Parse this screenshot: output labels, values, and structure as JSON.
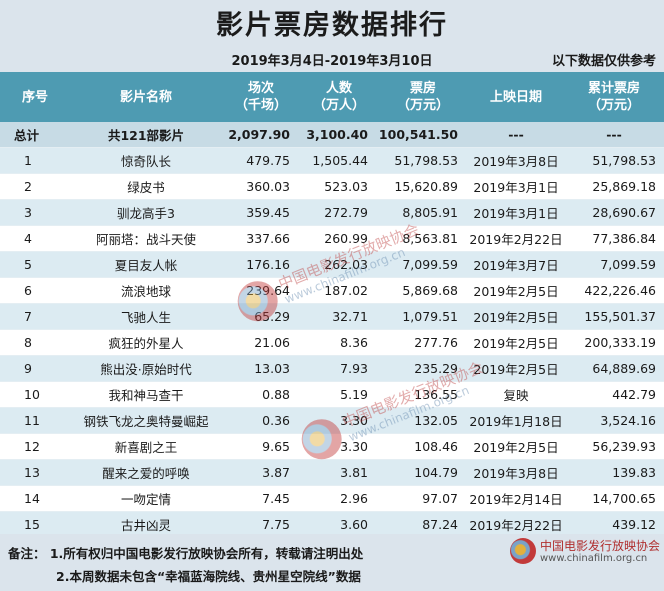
{
  "title": "影片票房数据排行",
  "date_range": "2019年3月4日-2019年3月10日",
  "note": "以下数据仅供参考",
  "headers": {
    "rank": "序号",
    "name": "影片名称",
    "screenings": "场次",
    "screenings_unit": "（千场）",
    "audience": "人数",
    "audience_unit": "（万人）",
    "box": "票房",
    "box_unit": "（万元）",
    "date": "上映日期",
    "cum": "累计票房",
    "cum_unit": "（万元）"
  },
  "total": {
    "label": "总计",
    "name": "共121部影片",
    "screenings": "2,097.90",
    "audience": "3,100.40",
    "box": "100,541.50",
    "date": "---",
    "cum": "---"
  },
  "rows": [
    {
      "rank": "1",
      "name": "惊奇队长",
      "screenings": "479.75",
      "audience": "1,505.44",
      "box": "51,798.53",
      "date": "2019年3月8日",
      "cum": "51,798.53"
    },
    {
      "rank": "2",
      "name": "绿皮书",
      "screenings": "360.03",
      "audience": "523.03",
      "box": "15,620.89",
      "date": "2019年3月1日",
      "cum": "25,869.18"
    },
    {
      "rank": "3",
      "name": "驯龙高手3",
      "screenings": "359.45",
      "audience": "272.79",
      "box": "8,805.91",
      "date": "2019年3月1日",
      "cum": "28,690.67"
    },
    {
      "rank": "4",
      "name": "阿丽塔：战斗天使",
      "screenings": "337.66",
      "audience": "260.99",
      "box": "8,563.81",
      "date": "2019年2月22日",
      "cum": "77,386.84"
    },
    {
      "rank": "5",
      "name": "夏目友人帐",
      "screenings": "176.16",
      "audience": "262.03",
      "box": "7,099.59",
      "date": "2019年3月7日",
      "cum": "7,099.59"
    },
    {
      "rank": "6",
      "name": "流浪地球",
      "screenings": "239.64",
      "audience": "187.02",
      "box": "5,869.68",
      "date": "2019年2月5日",
      "cum": "422,226.46"
    },
    {
      "rank": "7",
      "name": "飞驰人生",
      "screenings": "65.29",
      "audience": "32.71",
      "box": "1,079.51",
      "date": "2019年2月5日",
      "cum": "155,501.37"
    },
    {
      "rank": "8",
      "name": "疯狂的外星人",
      "screenings": "21.06",
      "audience": "8.36",
      "box": "277.76",
      "date": "2019年2月5日",
      "cum": "200,333.19"
    },
    {
      "rank": "9",
      "name": "熊出没·原始时代",
      "screenings": "13.03",
      "audience": "7.93",
      "box": "235.29",
      "date": "2019年2月5日",
      "cum": "64,889.69"
    },
    {
      "rank": "10",
      "name": "我和神马查干",
      "screenings": "0.88",
      "audience": "5.19",
      "box": "136.55",
      "date": "复映",
      "cum": "442.79"
    },
    {
      "rank": "11",
      "name": "钢铁飞龙之奥特曼崛起",
      "screenings": "0.36",
      "audience": "3.30",
      "box": "132.05",
      "date": "2019年1月18日",
      "cum": "3,524.16"
    },
    {
      "rank": "12",
      "name": "新喜剧之王",
      "screenings": "9.65",
      "audience": "3.30",
      "box": "108.46",
      "date": "2019年2月5日",
      "cum": "56,239.93"
    },
    {
      "rank": "13",
      "name": "醒来之爱的呼唤",
      "screenings": "3.87",
      "audience": "3.81",
      "box": "104.79",
      "date": "2019年3月8日",
      "cum": "139.83"
    },
    {
      "rank": "14",
      "name": "一吻定情",
      "screenings": "7.45",
      "audience": "2.96",
      "box": "97.07",
      "date": "2019年2月14日",
      "cum": "14,700.65"
    },
    {
      "rank": "15",
      "name": "古井凶灵",
      "screenings": "7.75",
      "audience": "3.60",
      "box": "87.24",
      "date": "2019年2月22日",
      "cum": "439.12"
    }
  ],
  "footer": {
    "line1": "备注： 1.所有权归中国电影发行放映协会所有，转载请注明出处",
    "line2": "2.本周数据未包含“幸福蓝海院线、贵州星空院线”数据"
  },
  "watermark": {
    "org": "中国电影发行放映协会",
    "site": "www.chinafilm.org.cn"
  }
}
